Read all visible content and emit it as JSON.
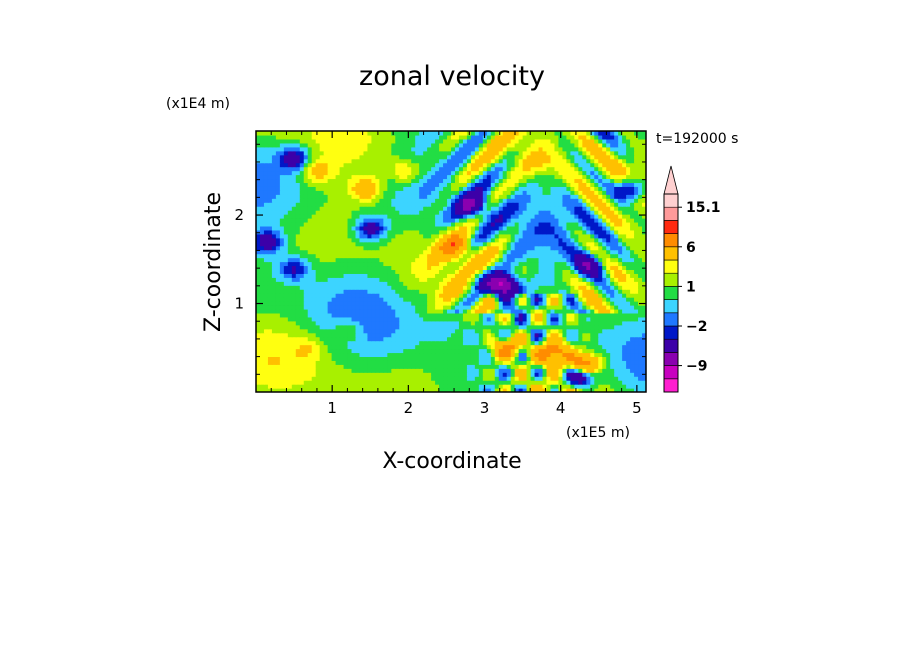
{
  "chart_data": {
    "type": "heatmap",
    "title": "zonal velocity",
    "xlabel": "X-coordinate",
    "ylabel": "Z-coordinate",
    "x_unit": "(x1E5 m)",
    "y_unit": "(x1E4 m)",
    "time_label": "t=192000 s",
    "xlim": [
      0,
      5.12
    ],
    "ylim": [
      0,
      2.95
    ],
    "x_ticks": [
      1,
      2,
      3,
      4,
      5
    ],
    "y_ticks": [
      1,
      2
    ],
    "colorbar": {
      "levels": [
        -15,
        -12,
        -9,
        -6,
        -3,
        -2,
        -1,
        0,
        1,
        2,
        3,
        6,
        9,
        12,
        15.1
      ],
      "colors": [
        "#ff1fd0",
        "#c800c0",
        "#8a00b0",
        "#3c00a8",
        "#0018c8",
        "#1f78ff",
        "#3cd4ff",
        "#22dd44",
        "#a8f000",
        "#ffff10",
        "#ffc000",
        "#ff8c00",
        "#ff2a10",
        "#ff9a9a",
        "#ffd0d0"
      ],
      "labels": [
        {
          "level": 15.1,
          "text": "15.1"
        },
        {
          "level": 6,
          "text": "6"
        },
        {
          "level": 1,
          "text": "1"
        },
        {
          "level": -2,
          "text": "−2"
        },
        {
          "level": -9,
          "text": "−9"
        }
      ],
      "extend_max": true
    },
    "field_features": [
      {
        "x": 0.5,
        "z": 2.65,
        "value": -5
      },
      {
        "x": 0.15,
        "z": 1.7,
        "value": -5
      },
      {
        "x": 0.5,
        "z": 1.4,
        "value": -4
      },
      {
        "x": 1.5,
        "z": 1.85,
        "value": -5
      },
      {
        "x": 3.25,
        "z": 1.2,
        "value": -12
      },
      {
        "x": 2.85,
        "z": 2.1,
        "value": -6
      },
      {
        "x": 4.25,
        "z": 0.2,
        "value": -10
      },
      {
        "x": 4.4,
        "z": 1.45,
        "value": -5
      },
      {
        "x": 4.9,
        "z": 2.3,
        "value": -6
      },
      {
        "x": 1.45,
        "z": 2.3,
        "value": 4
      },
      {
        "x": 2.6,
        "z": 1.65,
        "value": 6
      },
      {
        "x": 3.3,
        "z": 0.5,
        "value": 7
      },
      {
        "x": 3.9,
        "z": 0.45,
        "value": 8
      },
      {
        "x": 4.3,
        "z": 0.3,
        "value": 10
      },
      {
        "x": 1.95,
        "z": 2.5,
        "value": 3
      },
      {
        "x": 0.8,
        "z": 2.5,
        "value": 3
      },
      {
        "x": 1.2,
        "z": 0.7,
        "value": 2
      },
      {
        "x": 0.7,
        "z": 0.5,
        "value": 1.5
      },
      {
        "x": 3.7,
        "z": 2.6,
        "value": 1.5
      },
      {
        "x": 2.5,
        "z": 0.75,
        "value": -1
      },
      {
        "x": 2.9,
        "z": 1.3,
        "value": -3
      }
    ]
  }
}
